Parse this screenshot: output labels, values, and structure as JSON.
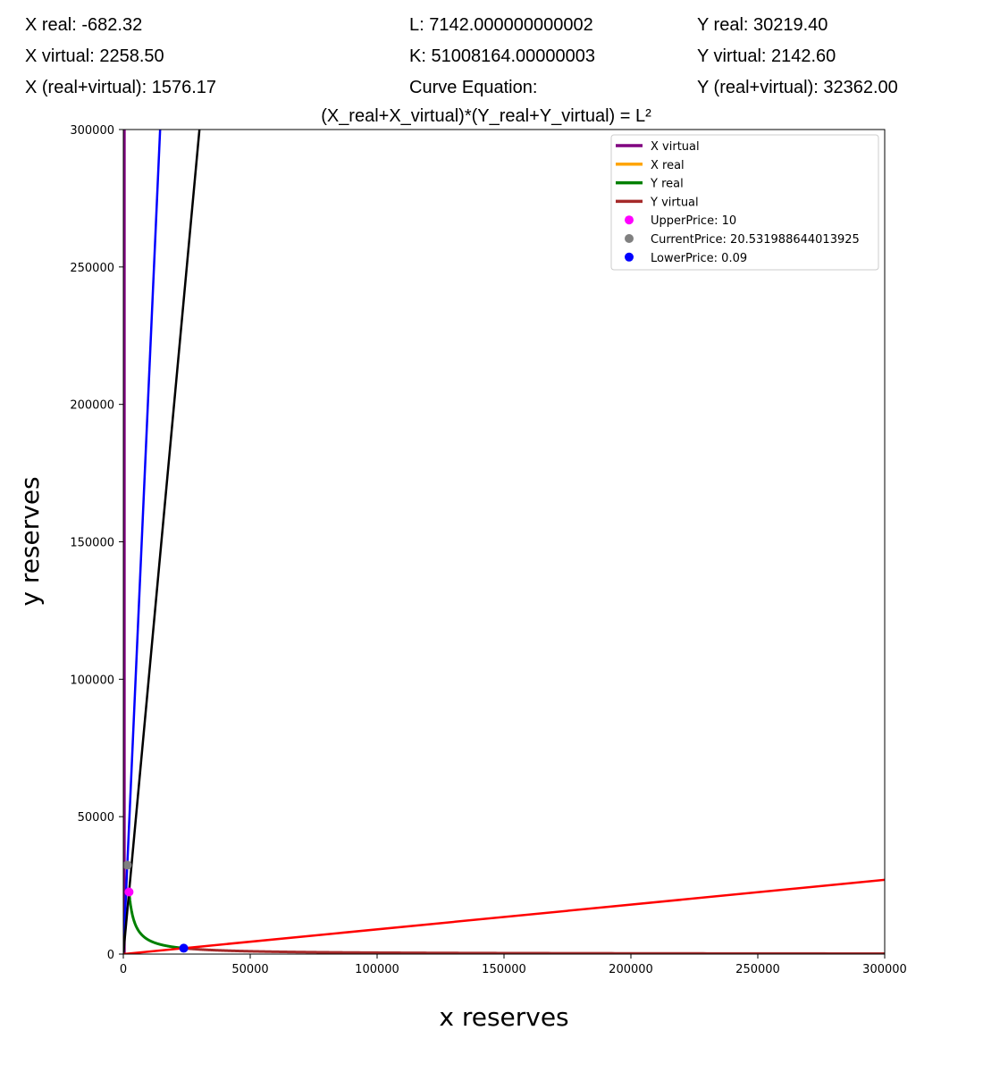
{
  "info": {
    "x_real": "X real: -682.32",
    "x_virtual": "X virtual: 2258.50",
    "x_total": "X (real+virtual): 1576.17",
    "l_value": "L: 7142.000000000002",
    "k_value": "K: 51008164.00000003",
    "curve_label": "Curve Equation:",
    "y_real": "Y real: 30219.40",
    "y_virtual": "Y virtual: 2142.60",
    "y_total": "Y (real+virtual): 32362.00"
  },
  "chart_data": {
    "type": "line",
    "title": "(X_real+X_virtual)*(Y_real+Y_virtual) = L²",
    "xlabel": "x reserves",
    "ylabel": "y reserves",
    "xlim": [
      0,
      300000
    ],
    "ylim": [
      0,
      300000
    ],
    "xticks": [
      0,
      50000,
      100000,
      150000,
      200000,
      250000,
      300000
    ],
    "yticks": [
      0,
      50000,
      100000,
      150000,
      200000,
      250000,
      300000
    ],
    "grid": false,
    "legend_position": "top-right",
    "series": [
      {
        "name": "X virtual",
        "color": "#800080",
        "legend": true,
        "points": [
          [
            500,
            0
          ],
          [
            500,
            300000
          ]
        ]
      },
      {
        "name": "X real",
        "color": "#ffa500",
        "legend": true,
        "points": [
          [
            0,
            0
          ],
          [
            0,
            0
          ]
        ]
      },
      {
        "name": "Y real",
        "color": "#008000",
        "legend": true,
        "curve": {
          "k": 51008164,
          "x_from": 2258.5,
          "x_to": 23800
        }
      },
      {
        "name": "Y virtual",
        "color": "#a52a2a",
        "legend": true,
        "curve": {
          "k": 51008164,
          "x_from": 23800,
          "x_to": 300000
        }
      },
      {
        "name": "",
        "color": "#0000ff",
        "legend": false,
        "points": [
          [
            0,
            0
          ],
          [
            14500,
            300000
          ]
        ]
      },
      {
        "name": "",
        "color": "#000000",
        "legend": false,
        "points": [
          [
            0,
            0
          ],
          [
            30000,
            300000
          ]
        ]
      },
      {
        "name": "",
        "color": "#ff0000",
        "legend": false,
        "points": [
          [
            0,
            0
          ],
          [
            300000,
            27000
          ]
        ]
      }
    ],
    "markers": [
      {
        "label": "UpperPrice: 10",
        "color": "#ff00ff",
        "x": 2258.5,
        "y": 22585
      },
      {
        "label": "CurrentPrice: 20.531988644013925",
        "color": "#808080",
        "x": 1576.17,
        "y": 32362
      },
      {
        "label": "LowerPrice: 0.09",
        "color": "#0000ff",
        "x": 23800,
        "y": 2142.6
      }
    ]
  }
}
